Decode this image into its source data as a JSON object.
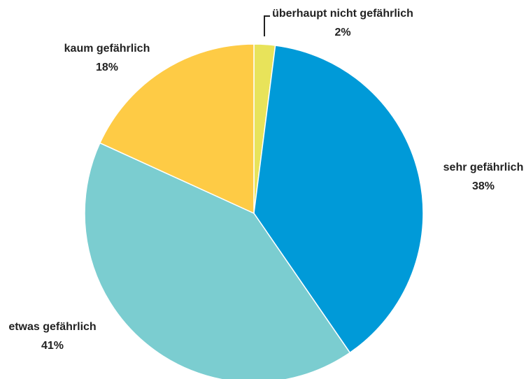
{
  "chart_data": {
    "type": "pie",
    "categories": [
      "überhaupt nicht gefährlich",
      "sehr gefährlich",
      "etwas gefährlich",
      "kaum gefährlich"
    ],
    "values": [
      2,
      38,
      41,
      18
    ],
    "value_labels": [
      "2%",
      "38%",
      "41%",
      "18%"
    ],
    "colors": [
      "#e8e35a",
      "#009ad8",
      "#7bcdd0",
      "#fecb45"
    ]
  }
}
